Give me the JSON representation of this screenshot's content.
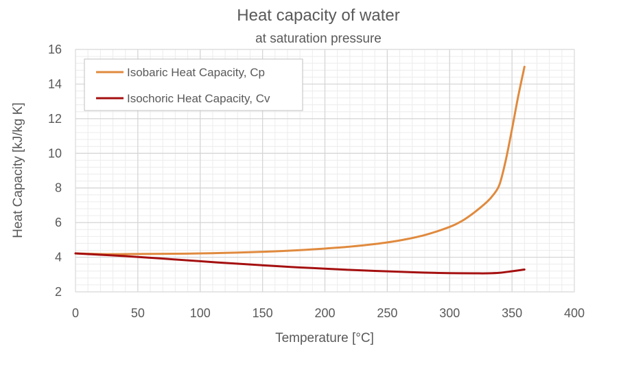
{
  "chart_data": {
    "type": "line",
    "title": "Heat capacity of water",
    "subtitle": "at saturation pressure",
    "xlabel": "Temperature [°C]",
    "ylabel": "Heat Capacity [kJ/kg K]",
    "xlim": [
      0,
      400
    ],
    "ylim": [
      2,
      16
    ],
    "x_ticks": [
      "0",
      "50",
      "100",
      "150",
      "200",
      "250",
      "300",
      "350",
      "400"
    ],
    "y_ticks": [
      "2",
      "4",
      "6",
      "8",
      "10",
      "12",
      "14",
      "16"
    ],
    "grid": true,
    "minor_grid": true,
    "legend_position": "top-left",
    "series": [
      {
        "name": "Isobaric Heat Capacity, Cp",
        "color": "#e08a3e",
        "x": [
          0,
          20,
          40,
          60,
          80,
          100,
          120,
          140,
          160,
          180,
          200,
          220,
          240,
          260,
          280,
          300,
          310,
          320,
          330,
          335,
          340,
          345,
          350,
          355,
          360
        ],
        "y": [
          4.22,
          4.18,
          4.18,
          4.19,
          4.2,
          4.22,
          4.25,
          4.29,
          4.34,
          4.41,
          4.5,
          4.61,
          4.76,
          4.97,
          5.28,
          5.75,
          6.1,
          6.6,
          7.2,
          7.6,
          8.2,
          9.6,
          11.4,
          13.3,
          15.0
        ]
      },
      {
        "name": "Isochoric Heat Capacity, Cv",
        "color": "#a50f0f",
        "x": [
          0,
          20,
          40,
          60,
          80,
          100,
          120,
          140,
          160,
          180,
          200,
          220,
          240,
          260,
          280,
          300,
          320,
          330,
          340,
          350,
          360
        ],
        "y": [
          4.22,
          4.14,
          4.06,
          3.97,
          3.87,
          3.77,
          3.67,
          3.58,
          3.49,
          3.41,
          3.34,
          3.27,
          3.21,
          3.16,
          3.11,
          3.08,
          3.07,
          3.07,
          3.1,
          3.19,
          3.29
        ]
      }
    ]
  }
}
